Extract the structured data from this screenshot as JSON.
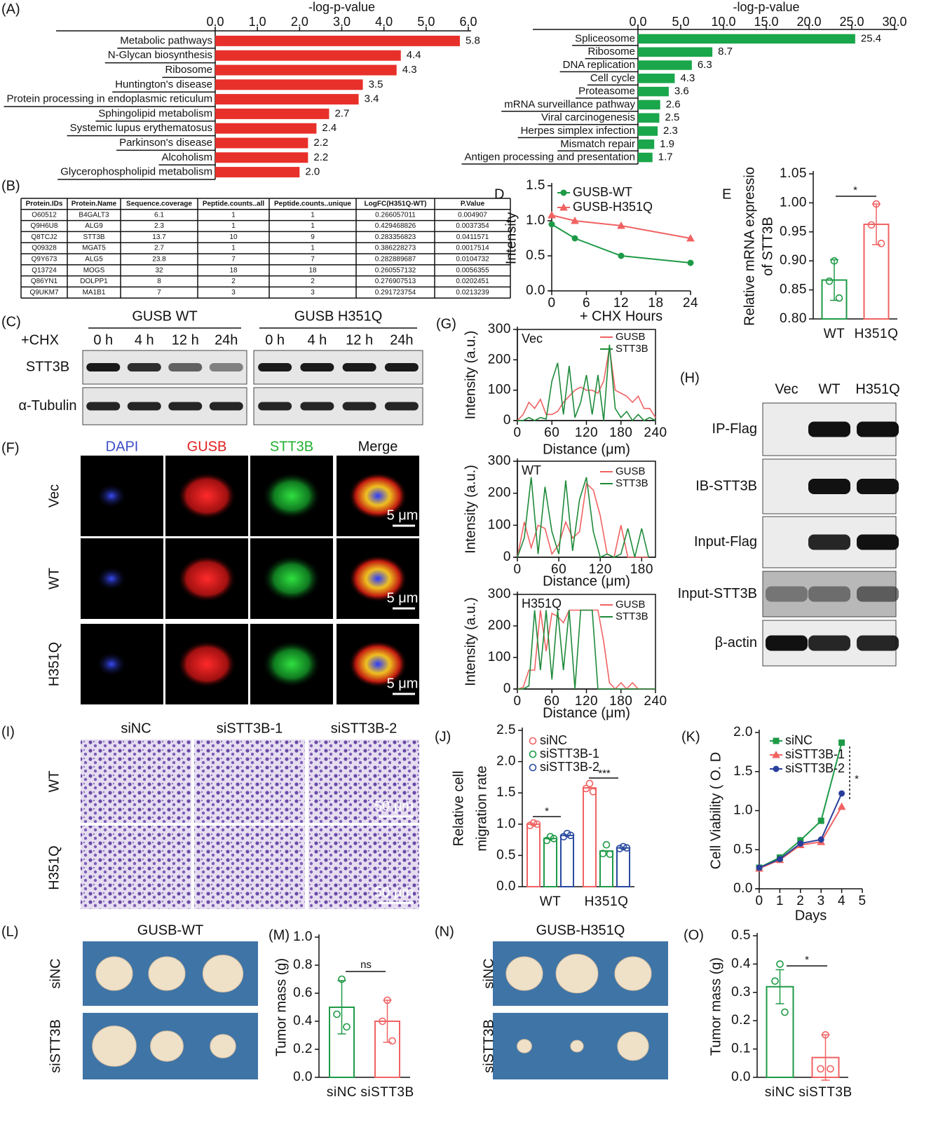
{
  "chart_data": [
    {
      "panel": "(A)",
      "type": "bar",
      "orientation": "horizontal",
      "title": "-log-p-value",
      "categories": [
        "Metabolic pathways",
        "N-Glycan biosynthesis",
        "Ribosome",
        "Huntington's disease",
        "Protein processing in endoplasmic reticulum",
        "Sphingolipid metabolism",
        "Systemic lupus erythematosus",
        "Parkinson's disease",
        "Alcoholism",
        "Glycerophospholipid metabolism"
      ],
      "values": [
        5.8,
        4.4,
        4.3,
        3.5,
        3.4,
        2.7,
        2.4,
        2.2,
        2.2,
        2.0
      ],
      "value_labels": [
        "5.8",
        "4.4",
        "4.3",
        "3.5",
        "3.4",
        "2.7",
        "2.4",
        "2.2",
        "2.2",
        "2.0"
      ],
      "color": "#e8302a",
      "xlim": [
        0,
        6
      ],
      "xticks": [
        {
          "value": 0,
          "label": "0.0"
        },
        {
          "value": 1,
          "label": "1.0"
        },
        {
          "value": 2,
          "label": "2.0"
        },
        {
          "value": 3,
          "label": "3.0"
        },
        {
          "value": 4,
          "label": "4.0"
        },
        {
          "value": 5,
          "label": "5.0"
        },
        {
          "value": 6,
          "label": "6.0"
        }
      ]
    },
    {
      "type": "bar",
      "orientation": "horizontal",
      "title": "-log-p-value",
      "categories": [
        "Spliceosome",
        "Ribosome",
        "DNA replication",
        "Cell cycle",
        "Proteasome",
        "mRNA surveillance pathway",
        "Viral carcinogenesis",
        "Herpes simplex infection",
        "Mismatch repair",
        "Antigen processing and presentation"
      ],
      "values": [
        25.4,
        8.7,
        6.3,
        4.3,
        3.6,
        2.6,
        2.5,
        2.3,
        1.9,
        1.7
      ],
      "value_labels": [
        "25.4",
        "8.7",
        "6.3",
        "4.3",
        "3.6",
        "2.6",
        "2.5",
        "2.3",
        "1.9",
        "1.7"
      ],
      "color": "#1aa64a",
      "xlim": [
        0,
        30
      ],
      "xticks": [
        {
          "value": 0,
          "label": "0.0"
        },
        {
          "value": 5,
          "label": "5.0"
        },
        {
          "value": 10,
          "label": "10.0"
        },
        {
          "value": 15,
          "label": "15.0"
        },
        {
          "value": 20,
          "label": "20.0"
        },
        {
          "value": 25,
          "label": "25.0"
        },
        {
          "value": 30,
          "label": "30.0"
        }
      ]
    },
    {
      "panel": "D",
      "type": "line",
      "x": [
        0,
        4,
        12,
        24
      ],
      "series": [
        {
          "name": "GUSB-WT",
          "color": "#1e9a46",
          "marker": "circle",
          "values": [
            0.95,
            0.75,
            0.5,
            0.4
          ]
        },
        {
          "name": "GUSB-H351Q",
          "color": "#f06262",
          "marker": "triangle",
          "values": [
            1.08,
            1.0,
            0.93,
            0.75
          ]
        }
      ],
      "xlim": [
        0,
        24
      ],
      "xticks": [
        0,
        6,
        12,
        18,
        24
      ],
      "ylim": [
        0,
        1.5
      ],
      "yticks": [
        {
          "value": 0,
          "label": "0.0"
        },
        {
          "value": 0.5,
          "label": "0.5"
        },
        {
          "value": 1,
          "label": "1.0"
        },
        {
          "value": 1.5,
          "label": "1.5"
        }
      ],
      "xlabel": "+ CHX Hours",
      "ylabel": "Intensity"
    },
    {
      "panel": "E",
      "type": "bar",
      "categories": [
        "WT",
        "H351Q"
      ],
      "values": [
        0.867,
        0.963
      ],
      "errors": [
        0.035,
        0.035
      ],
      "points": [
        [
          0.9,
          0.865,
          0.836
        ],
        [
          0.998,
          0.962,
          0.93
        ]
      ],
      "colors": [
        "#1e9a46",
        "#f06262"
      ],
      "ylim": [
        0.8,
        1.05
      ],
      "yticks": [
        {
          "value": 0.8,
          "label": "0.80"
        },
        {
          "value": 0.85,
          "label": "0.85"
        },
        {
          "value": 0.9,
          "label": "0.90"
        },
        {
          "value": 0.95,
          "label": "0.95"
        },
        {
          "value": 1,
          "label": "1.00"
        },
        1.05
      ],
      "ylabel": [
        "Relative mRNA expressio",
        "of STT3B"
      ],
      "annotations": [
        "*"
      ]
    },
    {
      "panel": "(G)",
      "type": "line",
      "title": "Vec",
      "x": [
        0,
        10,
        20,
        30,
        40,
        50,
        60,
        70,
        80,
        90,
        100,
        110,
        120,
        130,
        140,
        150,
        160,
        170,
        180,
        190,
        200,
        210,
        220,
        230,
        240
      ],
      "series": [
        {
          "name": "GUSB",
          "color": "#f06262",
          "values": [
            0,
            20,
            60,
            40,
            70,
            20,
            20,
            30,
            60,
            80,
            100,
            110,
            100,
            100,
            90,
            130,
            240,
            100,
            90,
            80,
            60,
            80,
            40,
            40,
            10
          ]
        },
        {
          "name": "STT3B",
          "color": "#1e8a3a",
          "values": [
            0,
            0,
            10,
            0,
            10,
            5,
            130,
            190,
            20,
            180,
            10,
            60,
            150,
            20,
            150,
            0,
            250,
            40,
            10,
            30,
            0,
            20,
            0,
            10,
            0
          ]
        }
      ],
      "xlim": [
        0,
        240
      ],
      "xticks": [
        0,
        60,
        120,
        180,
        240
      ],
      "ylim": [
        0,
        300
      ],
      "yticks": [
        0,
        100,
        200,
        300
      ],
      "xlabel": "Distance (μm)",
      "ylabel": "Intensity (a.u.)"
    },
    {
      "type": "line",
      "title": "WT",
      "x": [
        0,
        10,
        20,
        30,
        40,
        50,
        60,
        70,
        80,
        90,
        100,
        110,
        120,
        130,
        140,
        150,
        160,
        170,
        180,
        190
      ],
      "series": [
        {
          "name": "GUSB",
          "color": "#f06262",
          "values": [
            0,
            110,
            30,
            100,
            90,
            10,
            40,
            110,
            60,
            80,
            230,
            210,
            130,
            10,
            0,
            100,
            0,
            0,
            0,
            0
          ]
        },
        {
          "name": "STT3B",
          "color": "#1e8a3a",
          "values": [
            0,
            60,
            250,
            10,
            220,
            80,
            10,
            240,
            20,
            180,
            250,
            80,
            0,
            10,
            0,
            10,
            90,
            0,
            90,
            0
          ]
        }
      ],
      "xlim": [
        0,
        200
      ],
      "xticks": [
        0,
        60,
        120,
        180
      ],
      "ylim": [
        0,
        300
      ],
      "yticks": [
        0,
        100,
        200,
        300
      ],
      "xlabel": "Distance (μm)",
      "ylabel": "Intensity (a.u.)"
    },
    {
      "type": "line",
      "title": "H351Q",
      "x": [
        0,
        10,
        20,
        30,
        40,
        50,
        60,
        70,
        80,
        90,
        100,
        110,
        120,
        130,
        140,
        150,
        160,
        170,
        180,
        190,
        200,
        210,
        220,
        230,
        240
      ],
      "series": [
        {
          "name": "GUSB",
          "color": "#f06262",
          "values": [
            0,
            5,
            60,
            60,
            250,
            120,
            240,
            230,
            210,
            250,
            250,
            250,
            250,
            250,
            250,
            150,
            20,
            0,
            20,
            0,
            20,
            0,
            0,
            0,
            0
          ]
        },
        {
          "name": "STT3B",
          "color": "#1e8a3a",
          "values": [
            0,
            0,
            10,
            250,
            60,
            250,
            30,
            250,
            60,
            250,
            0,
            250,
            250,
            250,
            0,
            0,
            0,
            0,
            0,
            0,
            0,
            0,
            0,
            0,
            0
          ]
        }
      ],
      "xlim": [
        0,
        240
      ],
      "xticks": [
        0,
        60,
        120,
        180,
        240
      ],
      "ylim": [
        0,
        300
      ],
      "yticks": [
        0,
        100,
        200,
        300
      ],
      "xlabel": "Distance (μm)",
      "ylabel": "Intensity (a.u.)"
    },
    {
      "panel": "(J)",
      "type": "bar",
      "categories": [
        "WT",
        "H351Q"
      ],
      "series": [
        {
          "name": "siNC",
          "color": "#f06262",
          "values": [
            1.0,
            1.58
          ],
          "points": [
            [
              1.02,
              0.98,
              1.0
            ],
            [
              1.65,
              1.57,
              1.52
            ]
          ]
        },
        {
          "name": "siSTT3B-1",
          "color": "#1e9a46",
          "values": [
            0.77,
            0.57
          ],
          "points": [
            [
              0.8,
              0.74,
              0.77
            ],
            [
              0.67,
              0.53,
              0.52
            ]
          ]
        },
        {
          "name": "siSTT3B-2",
          "color": "#2a4aa0",
          "values": [
            0.82,
            0.62
          ],
          "points": [
            [
              0.85,
              0.8,
              0.82
            ],
            [
              0.64,
              0.61,
              0.62
            ]
          ]
        }
      ],
      "ylim": [
        0,
        2.5
      ],
      "yticks": [
        {
          "value": 0,
          "label": "0.0"
        },
        {
          "value": 0.5,
          "label": "0.5"
        },
        {
          "value": 1,
          "label": "1.0"
        },
        {
          "value": 1.5,
          "label": "1.5"
        },
        {
          "value": 2,
          "label": "2.0"
        },
        {
          "value": 2.5,
          "label": "2.5"
        }
      ],
      "ylabel": [
        "Relative cell",
        "migration rate"
      ],
      "annotations": [
        "*",
        "***"
      ]
    },
    {
      "panel": "(K)",
      "type": "line",
      "x": [
        0,
        1,
        2,
        3,
        4
      ],
      "series": [
        {
          "name": "siNC",
          "color": "#1e9a46",
          "marker": "square",
          "values": [
            0.27,
            0.4,
            0.62,
            0.87,
            1.87
          ]
        },
        {
          "name": "siSTT3B-1",
          "color": "#f06262",
          "marker": "triangle",
          "values": [
            0.26,
            0.37,
            0.56,
            0.6,
            1.05
          ]
        },
        {
          "name": "siSTT3B-2",
          "color": "#2a3f9a",
          "marker": "circle",
          "values": [
            0.27,
            0.38,
            0.58,
            0.63,
            1.22
          ]
        }
      ],
      "xlim": [
        0,
        5
      ],
      "xticks": [
        0,
        1,
        2,
        3,
        4,
        5
      ],
      "ylim": [
        0,
        2
      ],
      "yticks": [
        {
          "value": 0,
          "label": "0.0"
        },
        {
          "value": 0.5,
          "label": "0.5"
        },
        {
          "value": 1,
          "label": "1.0"
        },
        {
          "value": 1.5,
          "label": "1.5"
        },
        {
          "value": 2,
          "label": "2.0"
        }
      ],
      "xlabel": "Days",
      "ylabel": "Cell Viability ( O. D",
      "annotations": [
        "*"
      ]
    },
    {
      "panel": "(M)",
      "type": "bar",
      "categories": [
        "siNC",
        "siSTT3B"
      ],
      "values": [
        0.5,
        0.4
      ],
      "errors": [
        0.19,
        0.15
      ],
      "points": [
        [
          0.7,
          0.45,
          0.36
        ],
        [
          0.55,
          0.4,
          0.26
        ]
      ],
      "colors": [
        "#1e9a46",
        "#f06262"
      ],
      "ylim": [
        0,
        1.0
      ],
      "yticks": [
        {
          "value": 0,
          "label": "0.0"
        },
        0.2,
        0.4,
        0.6,
        0.8,
        {
          "value": 1,
          "label": "1.0"
        }
      ],
      "ylabel": [
        "Tumor mass (g)"
      ],
      "annotations": [
        "ns"
      ]
    },
    {
      "panel": "(O)",
      "type": "bar",
      "categories": [
        "siNC",
        "siSTT3B"
      ],
      "values": [
        0.32,
        0.07
      ],
      "errors": [
        0.06,
        0.08
      ],
      "points": [
        [
          0.4,
          0.34,
          0.23
        ],
        [
          0.15,
          0.03,
          0.03
        ]
      ],
      "colors": [
        "#1e9a46",
        "#f06262"
      ],
      "ylim": [
        0,
        0.5
      ],
      "yticks": [
        {
          "value": 0,
          "label": "0.0"
        },
        0.1,
        0.2,
        0.3,
        0.4,
        0.5
      ],
      "ylabel": [
        "Tumor mass (g)"
      ],
      "annotations": [
        "*"
      ]
    }
  ],
  "table": {
    "panel": "(B)",
    "columns": [
      "Protein.IDs",
      "Protein.Name",
      "Sequence.coverage",
      "Peptide.counts..all",
      "Peptide.counts..unique",
      "LogFC(H351Q-WT)",
      "P.Value"
    ],
    "rows": [
      [
        "O60512",
        "B4GALT3",
        "6.1",
        "1",
        "1",
        "0.266057011",
        "0.004907"
      ],
      [
        "Q9H6U8",
        "ALG9",
        "2.3",
        "1",
        "1",
        "0.429468826",
        "0.0037354"
      ],
      [
        "Q8TCJ2",
        "STT3B",
        "13.7",
        "10",
        "9",
        "0.283356823",
        "0.0411571"
      ],
      [
        "Q09328",
        "MGAT5",
        "2.7",
        "1",
        "1",
        "0.386228273",
        "0.0017514"
      ],
      [
        "Q9Y673",
        "ALG5",
        "23.8",
        "7",
        "7",
        "0.282889687",
        "0.0104732"
      ],
      [
        "Q13724",
        "MOGS",
        "32",
        "18",
        "18",
        "0.260557132",
        "0.0056355"
      ],
      [
        "Q86YN1",
        "DOLPP1",
        "8",
        "2",
        "2",
        "0.276907513",
        "0.0202451"
      ],
      [
        "Q9UKM7",
        "MA1B1",
        "7",
        "3",
        "3",
        "0.291723754",
        "0.0213239"
      ]
    ]
  },
  "blot_C": {
    "panel": "(C)",
    "treatment": "+CHX",
    "groups": [
      {
        "name": "GUSB WT",
        "lanes": [
          "0 h",
          "4 h",
          "12 h",
          "24h"
        ]
      },
      {
        "name": "GUSB H351Q",
        "lanes": [
          "0 h",
          "4 h",
          "12 h",
          "24h"
        ]
      }
    ],
    "rows": [
      "STT3B",
      "α-Tubulin"
    ]
  },
  "images_F": {
    "panel": "(F)",
    "columns": [
      "DAPI",
      "GUSB",
      "STT3B",
      "Merge"
    ],
    "rows": [
      "Vec",
      "WT",
      "H351Q"
    ],
    "scale_bar": "5 μm"
  },
  "blot_H": {
    "panel": "(H)",
    "lanes": [
      "Vec",
      "WT",
      "H351Q"
    ],
    "rows": [
      "IP-Flag",
      "IB-STT3B",
      "Input-Flag",
      "Input-STT3B",
      "β-actin"
    ]
  },
  "images_I": {
    "panel": "(I)",
    "columns": [
      "siNC",
      "siSTT3B-1",
      "siSTT3B-2"
    ],
    "rows": [
      "WT",
      "H351Q"
    ],
    "scale_bar": "50 μm"
  },
  "tumors_L": {
    "panel": "(L)",
    "title": "GUSB-WT",
    "rows": [
      "siNC",
      "siSTT3B"
    ]
  },
  "tumors_N": {
    "panel": "(N)",
    "title": "GUSB-H351Q",
    "rows": [
      "siNC",
      "siSTT3B"
    ]
  }
}
